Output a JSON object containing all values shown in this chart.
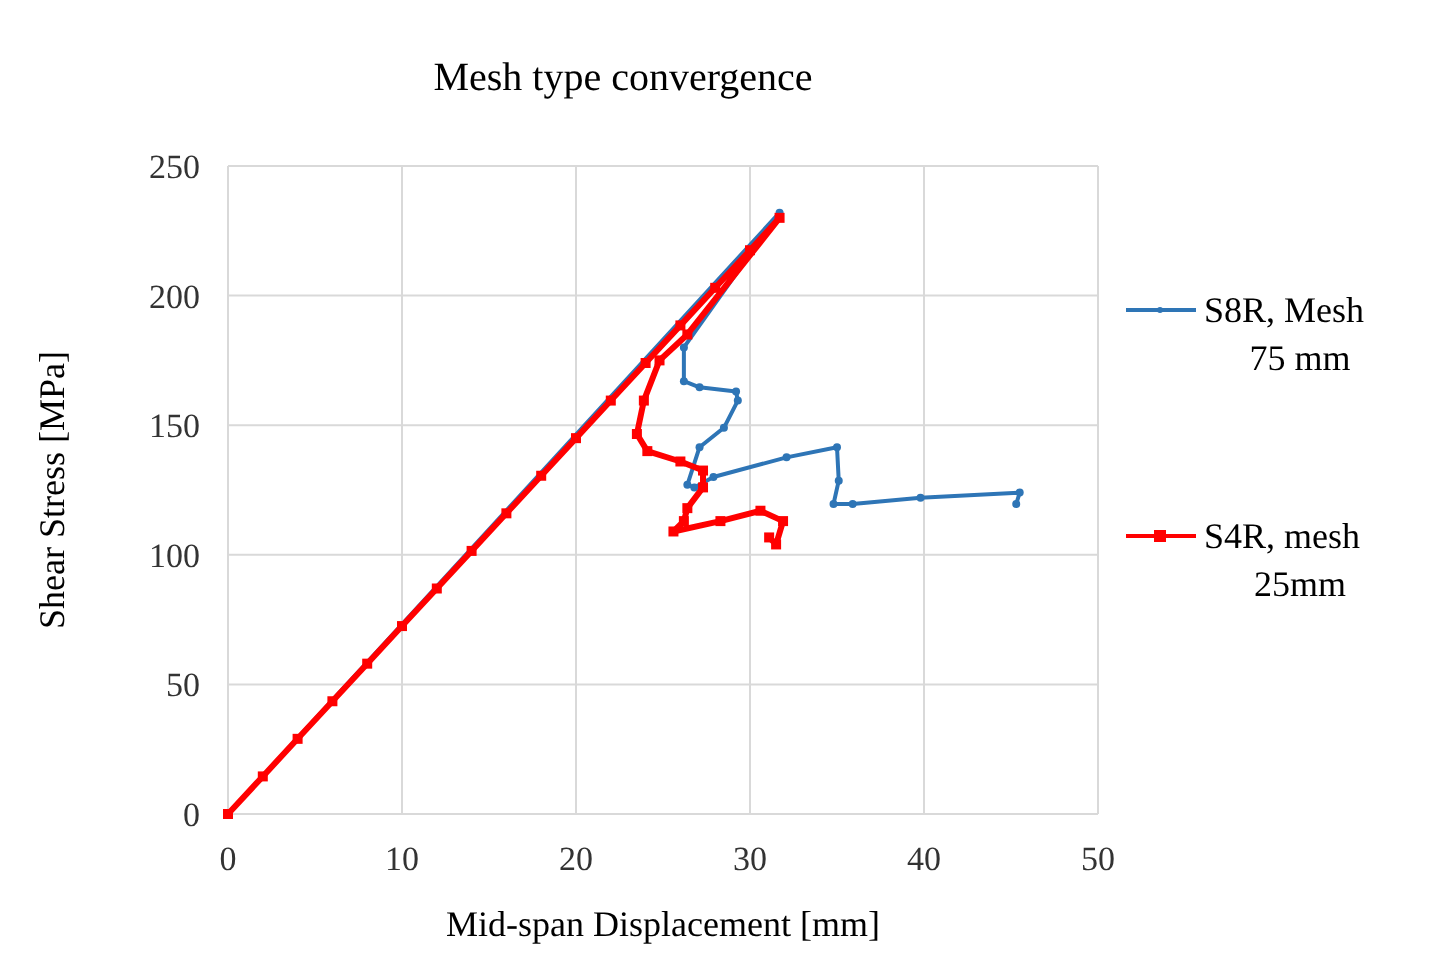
{
  "chart_data": {
    "type": "line",
    "title": "Mesh type convergence",
    "xlabel": "Mid-span Displacement [mm]",
    "ylabel": "Shear Stress  [MPa]",
    "xlim": [
      0,
      50
    ],
    "xticks": [
      0,
      10,
      20,
      30,
      40,
      50
    ],
    "ylim": [
      0,
      250
    ],
    "yticks": [
      0,
      50,
      100,
      150,
      200,
      250
    ],
    "grid": true,
    "legend": "right",
    "series": [
      {
        "name": "S8R, Mesh 75 mm",
        "color": "#2e75b6",
        "marker": "circle",
        "x": [
          0,
          31.7,
          26.2,
          26.2,
          27.1,
          29.2,
          29.3,
          28.5,
          27.1,
          26.4,
          26.8,
          27.9,
          32.1,
          35,
          35.1,
          34.8,
          35.9,
          39.8,
          45.5,
          45.3
        ],
        "values": [
          0,
          232,
          180,
          167,
          164.6,
          163,
          159.5,
          149,
          141.5,
          127,
          126,
          130,
          137.6,
          141.5,
          128.6,
          119.6,
          119.6,
          122,
          124,
          119.6
        ]
      },
      {
        "name": "S4R, mesh 25mm",
        "color": "#ff0000",
        "marker": "square",
        "x": [
          0,
          2,
          4,
          6,
          8,
          10,
          12,
          14,
          16,
          18,
          20,
          22,
          24,
          26,
          28,
          30,
          31.7,
          26.4,
          24.8,
          23.9,
          23.5,
          24.1,
          26,
          27.3,
          27.3,
          26.4,
          26.2,
          25.6,
          28.3,
          30.6,
          31.9,
          31.5,
          31.1
        ],
        "values": [
          0,
          14.5,
          29,
          43.5,
          58,
          72.5,
          87,
          101.5,
          116,
          130.5,
          145,
          159.5,
          174,
          188.5,
          203,
          217.5,
          230,
          185,
          175,
          159.5,
          146.6,
          140,
          136,
          132.5,
          126,
          118,
          113,
          109,
          113,
          117,
          113,
          104,
          106.7
        ]
      }
    ]
  }
}
